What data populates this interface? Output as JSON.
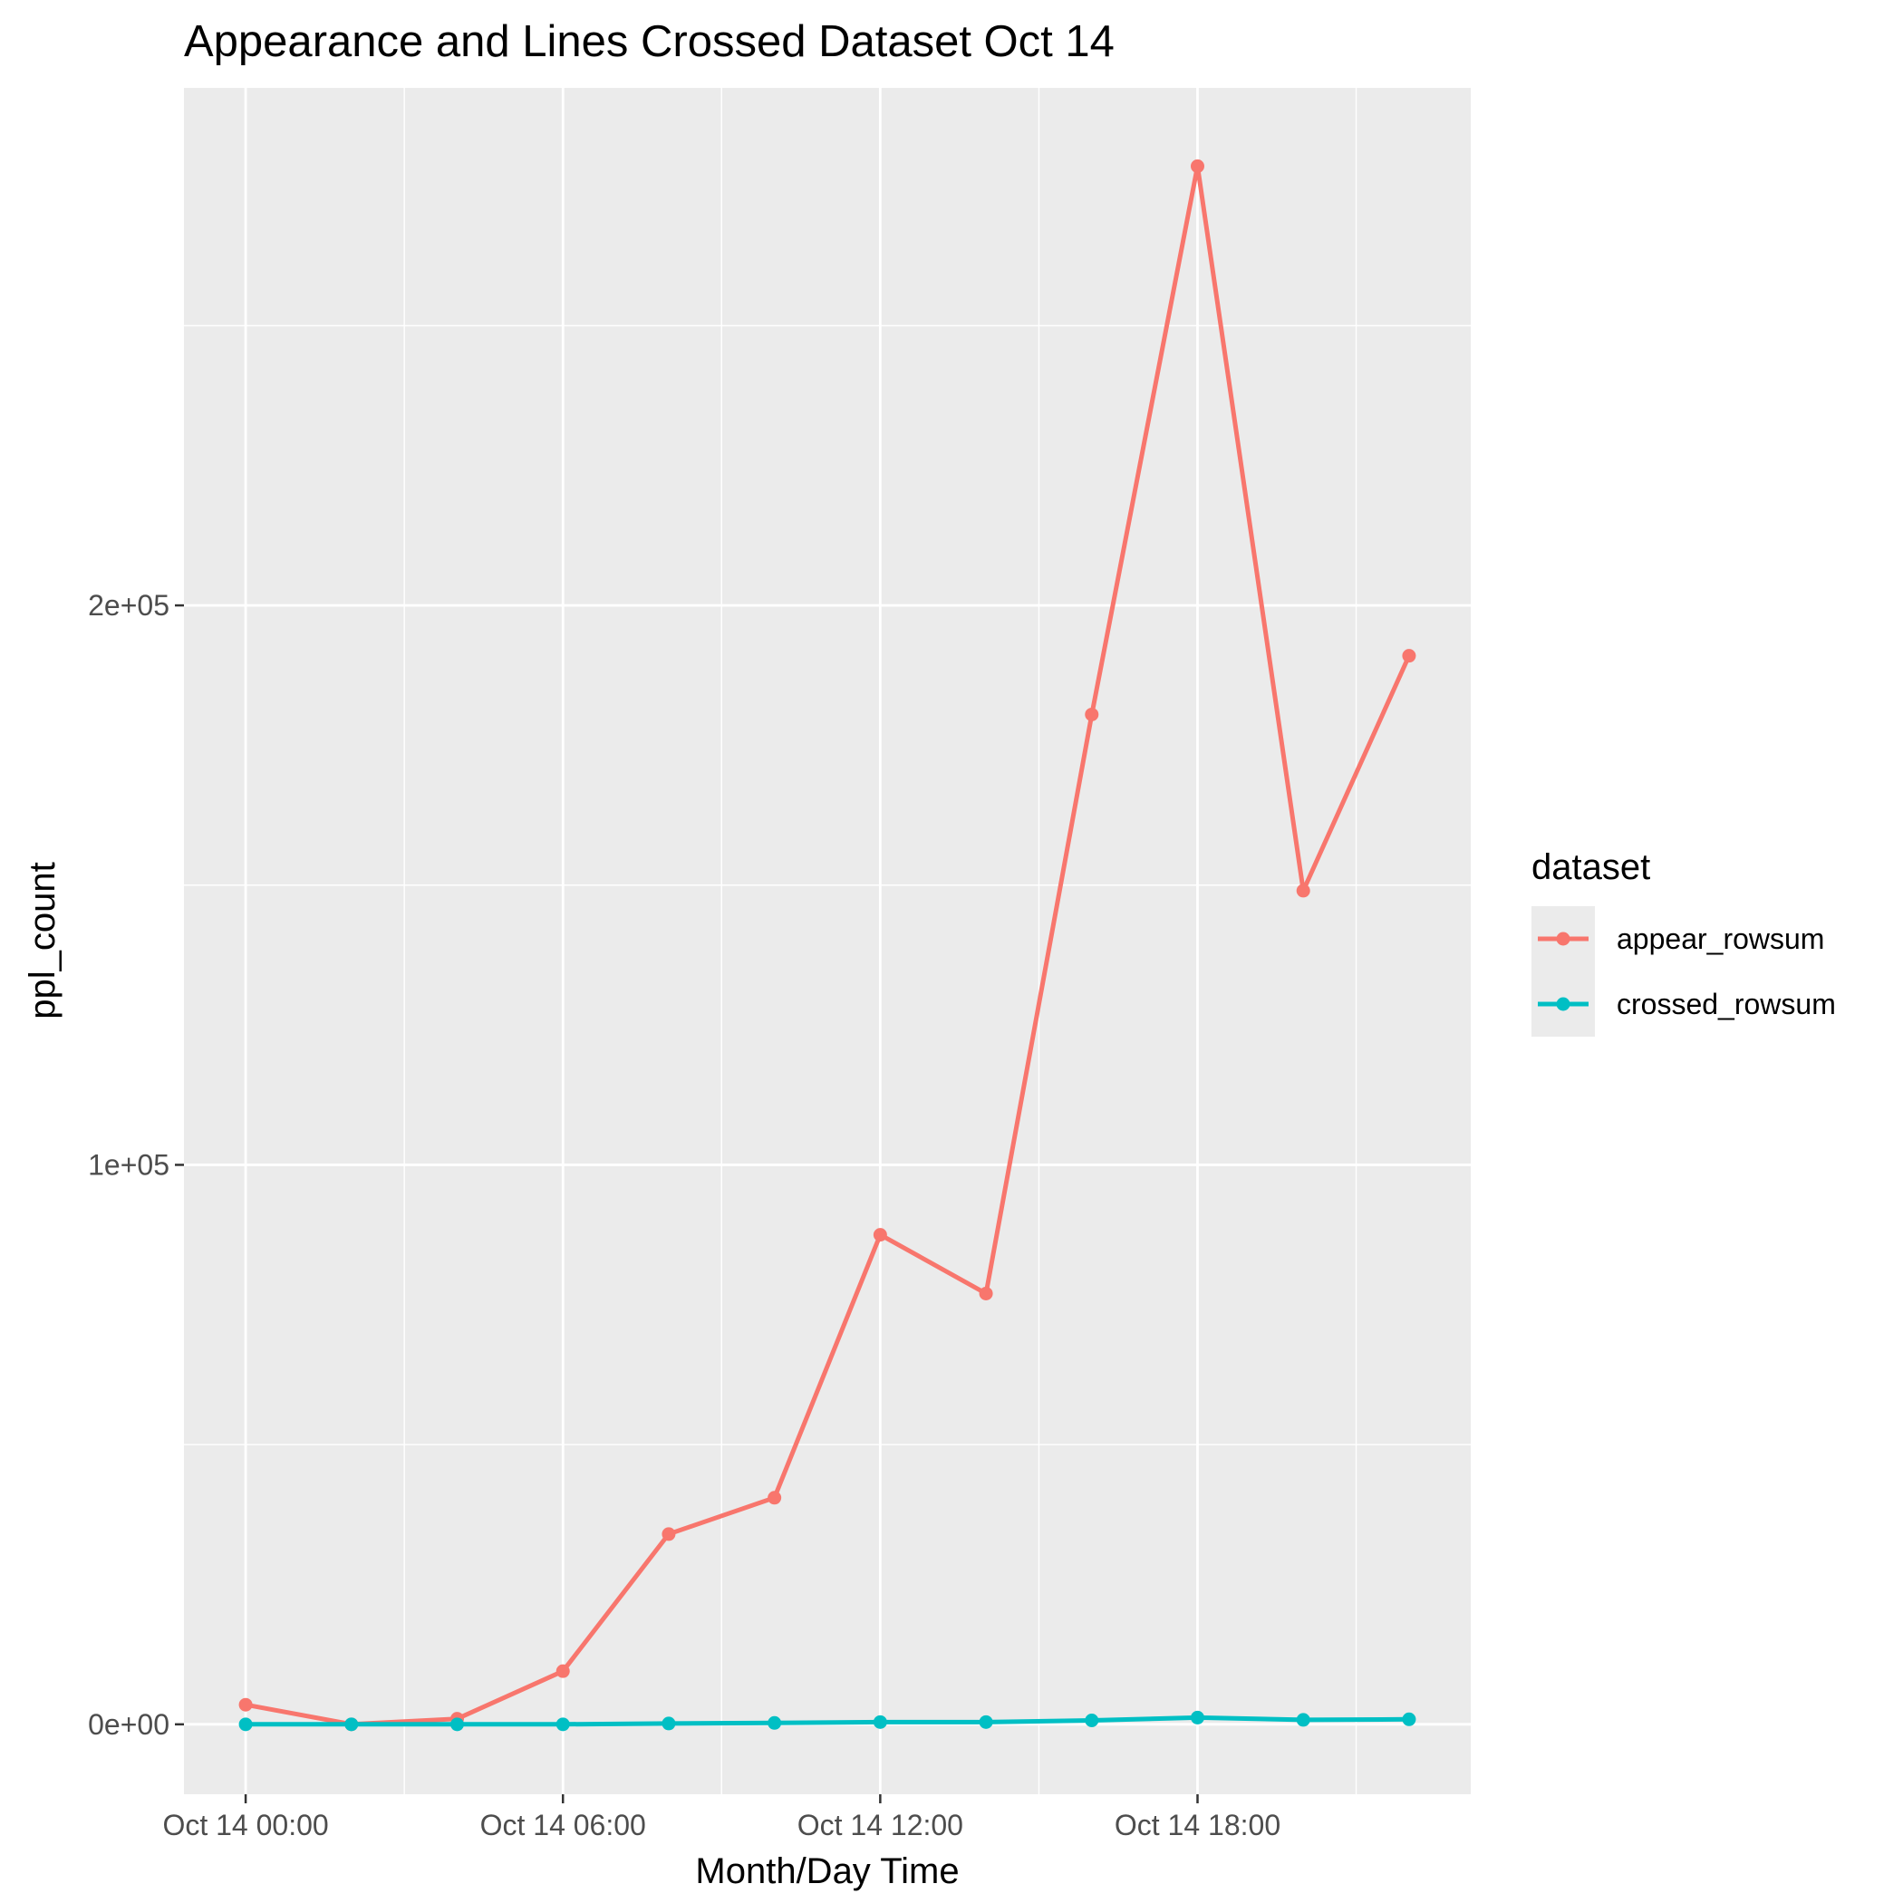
{
  "chart_data": {
    "type": "line",
    "title": "Appearance and Lines Crossed Dataset Oct 14",
    "xlabel": "Month/Day Time",
    "ylabel": "ppl_count",
    "x": [
      "Oct 14 00:00",
      "Oct 14 02:00",
      "Oct 14 04:00",
      "Oct 14 06:00",
      "Oct 14 08:00",
      "Oct 14 10:00",
      "Oct 14 12:00",
      "Oct 14 14:00",
      "Oct 14 16:00",
      "Oct 14 18:00",
      "Oct 14 20:00",
      "Oct 14 22:00"
    ],
    "x_tick_labels": [
      "Oct 14 00:00",
      "Oct 14 06:00",
      "Oct 14 12:00",
      "Oct 14 18:00"
    ],
    "xlim": [
      "Oct 13 22:50",
      "Oct 14 23:10"
    ],
    "y_tick_values": [
      0,
      100000,
      200000
    ],
    "y_tick_labels": [
      "0e+00",
      "1e+05",
      "2e+05"
    ],
    "ylim": [
      -12500,
      292500
    ],
    "legend": {
      "title": "dataset",
      "position": "right"
    },
    "grid": true,
    "series": [
      {
        "name": "appear_rowsum",
        "color": "#F8766D",
        "values": [
          3500,
          0,
          1000,
          9500,
          34000,
          40500,
          87500,
          77000,
          180500,
          278500,
          149000,
          191000
        ]
      },
      {
        "name": "crossed_rowsum",
        "color": "#00BFC4",
        "values": [
          0,
          0,
          0,
          0,
          150,
          250,
          400,
          400,
          700,
          1200,
          800,
          900
        ]
      }
    ]
  }
}
